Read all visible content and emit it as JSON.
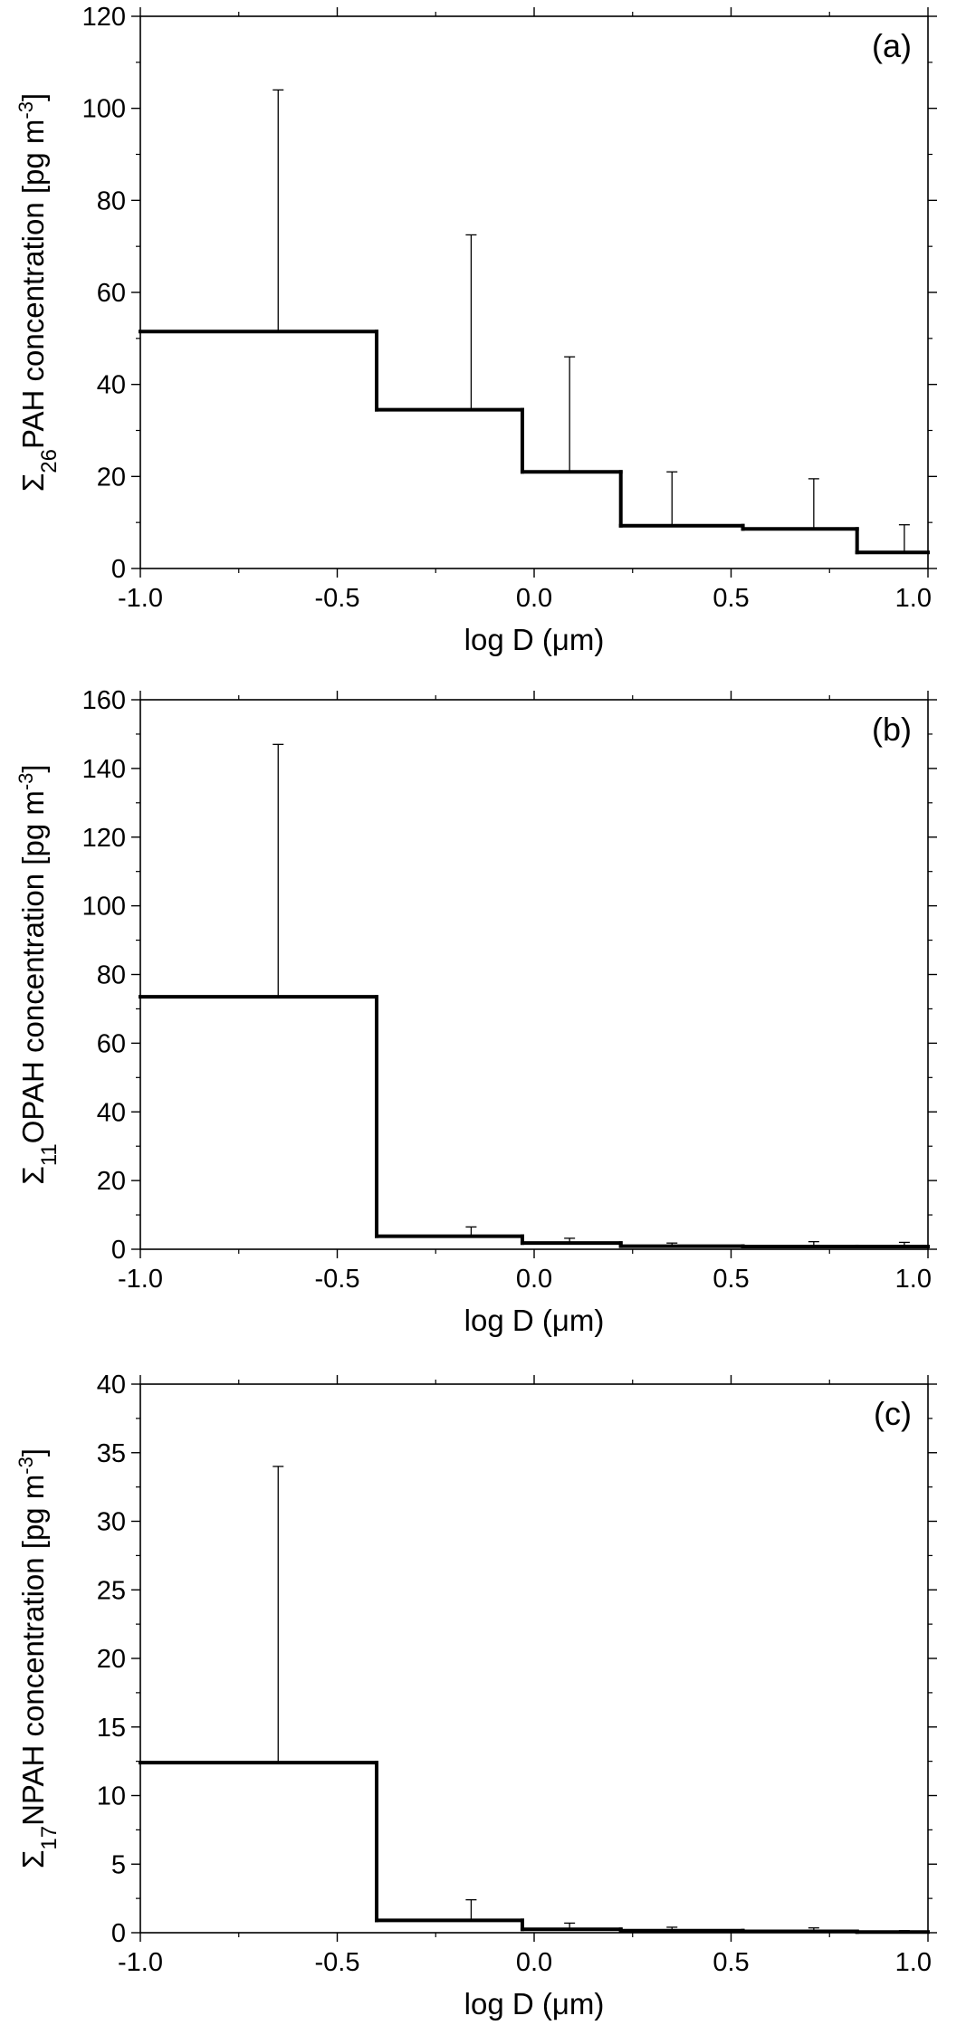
{
  "chart_data": [
    {
      "type": "step",
      "panel_label": "(a)",
      "ylabel": "Σ26PAH concentration [pg m-3]",
      "ylabel_parts": {
        "symbol": "Σ",
        "subscript": "26",
        "compound": "PAH concentration [pg m",
        "superscript": "-3",
        "close": "]"
      },
      "xlabel": "log D (μm)",
      "xlim": [
        -1.0,
        1.0
      ],
      "ylim": [
        0,
        120
      ],
      "x_ticks": [
        "-1.0",
        "-0.5",
        "0.0",
        "0.5",
        "1.0"
      ],
      "y_ticks": [
        "0",
        "20",
        "40",
        "60",
        "80",
        "100",
        "120"
      ],
      "bin_edges": [
        -1.0,
        -0.4,
        -0.03,
        0.22,
        0.53,
        0.82,
        1.0
      ],
      "values": [
        51.5,
        34.5,
        21.0,
        9.3,
        8.6,
        3.5
      ],
      "error_x": [
        -0.65,
        -0.16,
        0.09,
        0.35,
        0.71,
        0.94
      ],
      "error_upper": [
        104,
        72.5,
        46,
        21,
        19.5,
        9.5
      ]
    },
    {
      "type": "step",
      "panel_label": "(b)",
      "ylabel": "Σ11OPAH concentration [pg m-3]",
      "ylabel_parts": {
        "symbol": "Σ",
        "subscript": "11",
        "compound": "OPAH concentration [pg m",
        "superscript": "-3",
        "close": "]"
      },
      "xlabel": "log D (μm)",
      "xlim": [
        -1.0,
        1.0
      ],
      "ylim": [
        0,
        160
      ],
      "x_ticks": [
        "-1.0",
        "-0.5",
        "0.0",
        "0.5",
        "1.0"
      ],
      "y_ticks": [
        "0",
        "20",
        "40",
        "60",
        "80",
        "100",
        "120",
        "140",
        "160"
      ],
      "bin_edges": [
        -1.0,
        -0.4,
        -0.03,
        0.22,
        0.53,
        0.82,
        1.0
      ],
      "values": [
        73.5,
        3.8,
        1.8,
        0.9,
        0.8,
        0.8
      ],
      "error_x": [
        -0.65,
        -0.16,
        0.09,
        0.35,
        0.71,
        0.94
      ],
      "error_upper": [
        147,
        6.5,
        3.2,
        1.8,
        2.2,
        2.0
      ]
    },
    {
      "type": "step",
      "panel_label": "(c)",
      "ylabel": "Σ17NPAH concentration [pg m-3]",
      "ylabel_parts": {
        "symbol": "Σ",
        "subscript": "17",
        "compound": "NPAH concentration [pg m",
        "superscript": "-3",
        "close": "]"
      },
      "xlabel": "log D (μm)",
      "xlim": [
        -1.0,
        1.0
      ],
      "ylim": [
        0,
        40
      ],
      "x_ticks": [
        "-1.0",
        "-0.5",
        "0.0",
        "0.5",
        "1.0"
      ],
      "y_ticks": [
        "0",
        "5",
        "10",
        "15",
        "20",
        "25",
        "30",
        "35",
        "40"
      ],
      "bin_edges": [
        -1.0,
        -0.4,
        -0.03,
        0.22,
        0.53,
        0.82,
        1.0
      ],
      "values": [
        12.4,
        0.9,
        0.25,
        0.15,
        0.1,
        0.05
      ],
      "error_x": [
        -0.65,
        -0.16,
        0.09,
        0.35,
        0.71,
        0.94
      ],
      "error_upper": [
        34,
        2.4,
        0.7,
        0.4,
        0.35,
        0.15
      ]
    }
  ]
}
